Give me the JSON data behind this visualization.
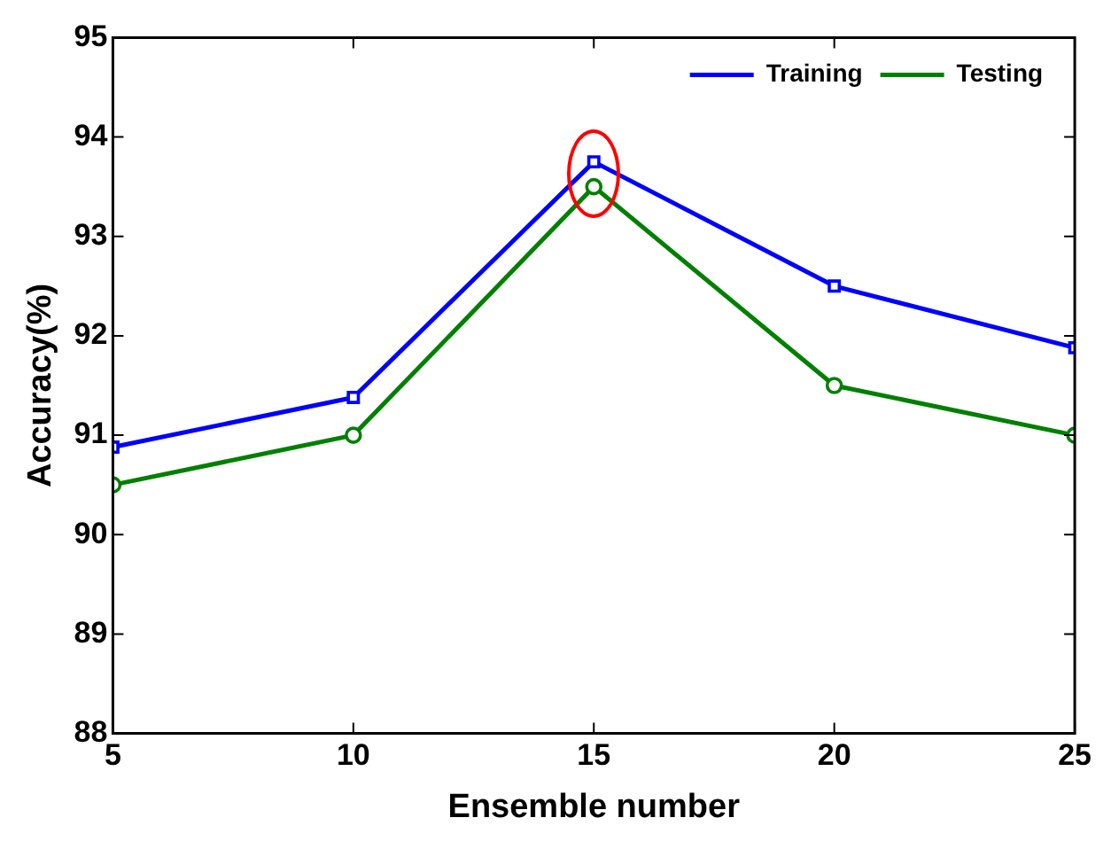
{
  "chart_data": {
    "type": "line",
    "xlabel": "Ensemble number",
    "ylabel": "Accuracy(%)",
    "x": [
      5,
      10,
      15,
      20,
      25
    ],
    "series": [
      {
        "name": "Training",
        "color": "#0000ff",
        "values": [
          90.88,
          91.38,
          93.75,
          92.5,
          91.88
        ],
        "marker": "square"
      },
      {
        "name": "Testing",
        "color": "#008000",
        "values": [
          90.5,
          91,
          93.5,
          91.5,
          91
        ],
        "marker": "circle"
      }
    ],
    "xlim": [
      5,
      25
    ],
    "xticks": [
      5,
      10,
      15,
      20,
      25
    ],
    "ylim": [
      88,
      95
    ],
    "yticks": [
      88,
      89,
      90,
      91,
      92,
      93,
      94,
      95
    ],
    "grid": false,
    "legend": "top right",
    "line_style": "solid"
  }
}
